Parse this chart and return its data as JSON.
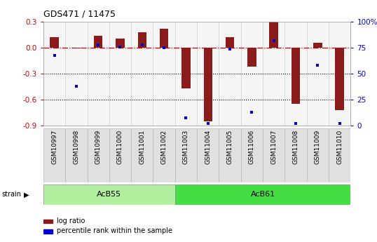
{
  "title": "GDS471 / 11475",
  "samples": [
    "GSM10997",
    "GSM10998",
    "GSM10999",
    "GSM11000",
    "GSM11001",
    "GSM11002",
    "GSM11003",
    "GSM11004",
    "GSM11005",
    "GSM11006",
    "GSM11007",
    "GSM11008",
    "GSM11009",
    "GSM11010"
  ],
  "log_ratio": [
    0.12,
    -0.01,
    0.14,
    0.11,
    0.18,
    0.22,
    -0.47,
    -0.85,
    0.12,
    -0.22,
    0.3,
    -0.65,
    0.06,
    -0.72
  ],
  "percentile_rank": [
    68,
    38,
    78,
    76,
    78,
    75,
    8,
    2,
    74,
    13,
    82,
    2,
    58,
    2
  ],
  "ylim_left": [
    -0.9,
    0.3
  ],
  "ylim_right": [
    0,
    100
  ],
  "yticks_left": [
    -0.9,
    -0.6,
    -0.3,
    0.0,
    0.3
  ],
  "yticks_right": [
    0,
    25,
    50,
    75,
    100
  ],
  "ytick_labels_right": [
    "0",
    "25",
    "50",
    "75",
    "100%"
  ],
  "groups": [
    {
      "label": "AcB55",
      "start": 0,
      "end": 5,
      "color": "#b2f0a0"
    },
    {
      "label": "AcB61",
      "start": 6,
      "end": 13,
      "color": "#44dd44"
    }
  ],
  "bar_color": "#8B1A1A",
  "dot_color": "#0000cc",
  "cell_bg_even": "#e8e8e8",
  "cell_bg_odd": "#d8d8d8",
  "plot_bg": "#f5f5f5",
  "dashed_line_color": "#cc0000",
  "legend_labels": [
    "log ratio",
    "percentile rank within the sample"
  ]
}
